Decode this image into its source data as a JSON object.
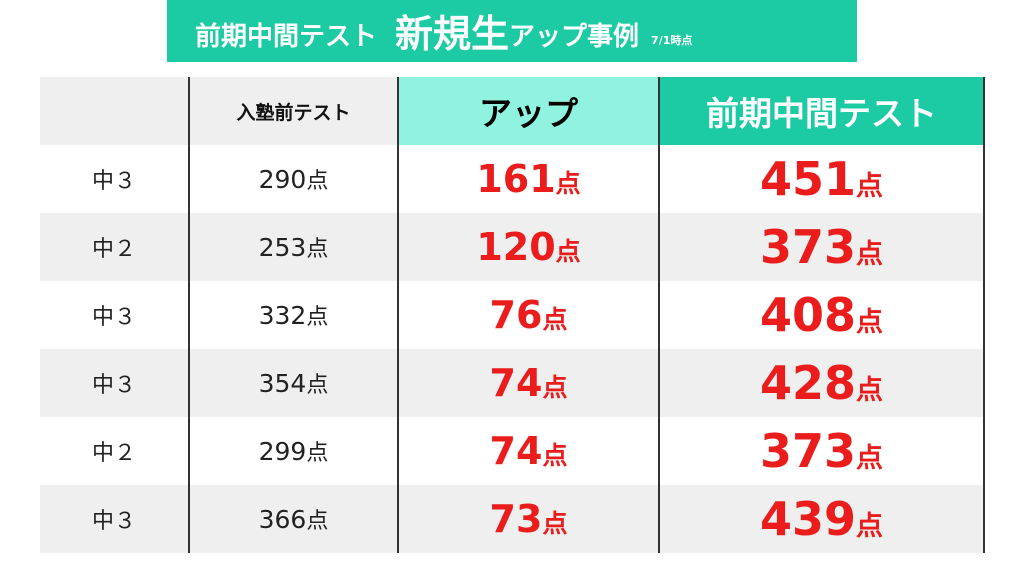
{
  "title": {
    "main": "前期中間テスト",
    "big": "新規生",
    "rest": "アップ事例",
    "date": "7/1時点"
  },
  "table": {
    "headers": {
      "grade": "",
      "pre": "入塾前テスト",
      "up": "アップ",
      "midterm": "前期中間テスト"
    },
    "unit": "点",
    "rows": [
      {
        "grade": "中３",
        "pre": "290",
        "up": "161",
        "midterm": "451"
      },
      {
        "grade": "中２",
        "pre": "253",
        "up": "120",
        "midterm": "373"
      },
      {
        "grade": "中３",
        "pre": "332",
        "up": "76",
        "midterm": "408"
      },
      {
        "grade": "中３",
        "pre": "354",
        "up": "74",
        "midterm": "428"
      },
      {
        "grade": "中２",
        "pre": "299",
        "up": "74",
        "midterm": "373"
      },
      {
        "grade": "中３",
        "pre": "366",
        "up": "73",
        "midterm": "439"
      }
    ]
  },
  "colors": {
    "banner": "#1ccba3",
    "up_header": "#8ff3e0",
    "score_red": "#ea1c1c",
    "row_alt": "#efefef"
  }
}
